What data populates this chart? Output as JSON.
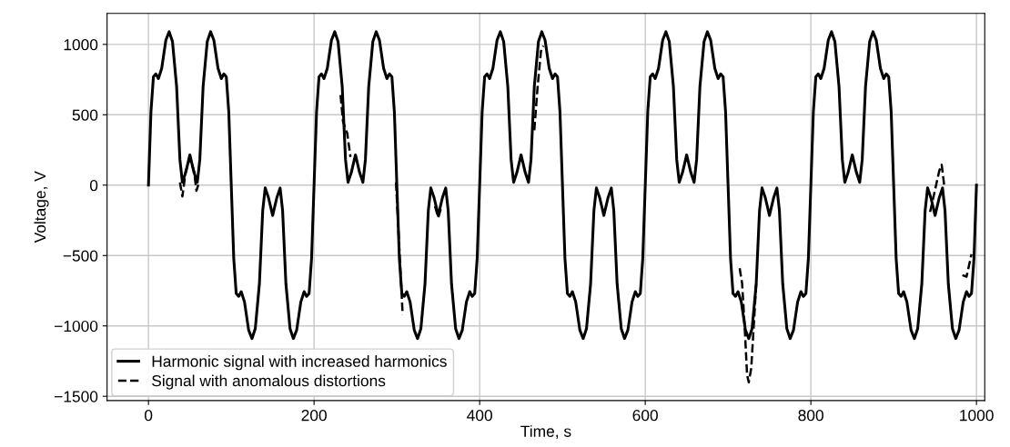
{
  "chart_data": {
    "type": "line",
    "xlabel": "Time, s",
    "ylabel": "Voltage, V",
    "xlim": [
      -50,
      1010
    ],
    "ylim": [
      -1530,
      1220
    ],
    "xticks": [
      0,
      200,
      400,
      600,
      800,
      1000
    ],
    "yticks": [
      {
        "value": -1500,
        "label": "−1500"
      },
      {
        "value": -1000,
        "label": "−1000"
      },
      {
        "value": -500,
        "label": "−500"
      },
      0,
      500,
      1000
    ],
    "grid": true,
    "legend": "bottom left",
    "series": [
      {
        "name": "Harmonic signal with increased harmonics",
        "color": "#000000",
        "line_style": "solid",
        "x": [
          0,
          3,
          6,
          9,
          12,
          16,
          21,
          25,
          29,
          34,
          38,
          41,
          45,
          50,
          55,
          59,
          62,
          66,
          71,
          75,
          79,
          84,
          88,
          91,
          94,
          97,
          100,
          103,
          106,
          109,
          112,
          116,
          121,
          125,
          129,
          134,
          138,
          141,
          145,
          150,
          155,
          159,
          162,
          166,
          171,
          175,
          179,
          184,
          188,
          191,
          194,
          197,
          200,
          203,
          206,
          209,
          212,
          216,
          221,
          225,
          229,
          234,
          238,
          241,
          245,
          250,
          255,
          259,
          262,
          266,
          271,
          275,
          279,
          284,
          288,
          291,
          294,
          297,
          300,
          303,
          306,
          309,
          312,
          316,
          321,
          325,
          329,
          334,
          338,
          341,
          345,
          350,
          355,
          359,
          362,
          366,
          371,
          375,
          379,
          384,
          388,
          391,
          394,
          397,
          400,
          403,
          406,
          409,
          412,
          416,
          421,
          425,
          429,
          434,
          438,
          441,
          445,
          450,
          455,
          459,
          462,
          466,
          471,
          475,
          479,
          484,
          488,
          491,
          494,
          497,
          500,
          503,
          506,
          509,
          512,
          516,
          521,
          525,
          529,
          534,
          538,
          541,
          545,
          550,
          555,
          559,
          562,
          566,
          571,
          575,
          579,
          584,
          588,
          591,
          594,
          597,
          600,
          603,
          606,
          609,
          612,
          616,
          621,
          625,
          629,
          634,
          638,
          641,
          645,
          650,
          655,
          659,
          662,
          666,
          671,
          675,
          679,
          684,
          688,
          691,
          694,
          697,
          700,
          703,
          706,
          709,
          712,
          716,
          721,
          725,
          729,
          734,
          738,
          741,
          745,
          750,
          755,
          759,
          762,
          766,
          771,
          775,
          779,
          784,
          788,
          791,
          794,
          797,
          800,
          803,
          806,
          809,
          812,
          816,
          821,
          825,
          829,
          834,
          838,
          841,
          845,
          850,
          855,
          859,
          862,
          866,
          871,
          875,
          879,
          884,
          888,
          891,
          894,
          897,
          900,
          903,
          906,
          909,
          912,
          916,
          921,
          925,
          929,
          934,
          938,
          941,
          945,
          950,
          955,
          959,
          962,
          966,
          971,
          975,
          979,
          984,
          988,
          991,
          994,
          997,
          1000
        ],
        "values": [
          0,
          520,
          770,
          790,
          757,
          830,
          1030,
          1090,
          1020,
          700,
          180,
          20,
          90,
          215,
          90,
          20,
          180,
          700,
          1020,
          1090,
          1030,
          830,
          757,
          790,
          770,
          520,
          0,
          -520,
          -770,
          -790,
          -757,
          -830,
          -1030,
          -1090,
          -1020,
          -700,
          -180,
          -20,
          -90,
          -215,
          -90,
          -20,
          -180,
          -700,
          -1020,
          -1090,
          -1030,
          -830,
          -757,
          -790,
          -770,
          -520,
          0,
          520,
          770,
          790,
          757,
          830,
          1030,
          1090,
          1020,
          700,
          180,
          20,
          90,
          215,
          90,
          20,
          180,
          700,
          1020,
          1090,
          1030,
          830,
          757,
          790,
          770,
          520,
          0,
          -520,
          -770,
          -790,
          -757,
          -830,
          -1030,
          -1090,
          -1020,
          -700,
          -180,
          -20,
          -90,
          -215,
          -90,
          -20,
          -180,
          -700,
          -1020,
          -1090,
          -1030,
          -830,
          -757,
          -790,
          -770,
          -520,
          0,
          520,
          770,
          790,
          757,
          830,
          1030,
          1090,
          1020,
          700,
          180,
          20,
          90,
          215,
          90,
          20,
          180,
          700,
          1020,
          1090,
          1030,
          830,
          757,
          790,
          770,
          520,
          0,
          -520,
          -770,
          -790,
          -757,
          -830,
          -1030,
          -1090,
          -1020,
          -700,
          -180,
          -20,
          -90,
          -215,
          -90,
          -20,
          -180,
          -700,
          -1020,
          -1090,
          -1030,
          -830,
          -757,
          -790,
          -770,
          -520,
          0,
          520,
          770,
          790,
          757,
          830,
          1030,
          1090,
          1020,
          700,
          180,
          20,
          90,
          215,
          90,
          20,
          180,
          700,
          1020,
          1090,
          1030,
          830,
          757,
          790,
          770,
          520,
          0,
          -520,
          -770,
          -790,
          -757,
          -830,
          -1030,
          -1090,
          -1020,
          -700,
          -180,
          -20,
          -90,
          -215,
          -90,
          -20,
          -180,
          -700,
          -1020,
          -1090,
          -1030,
          -830,
          -757,
          -790,
          -770,
          -520,
          0,
          520,
          770,
          790,
          757,
          830,
          1030,
          1090,
          1020,
          700,
          180,
          20,
          90,
          215,
          90,
          20,
          180,
          700,
          1020,
          1090,
          1030,
          830,
          757,
          790,
          770,
          520,
          0,
          -520,
          -770,
          -790,
          -757,
          -830,
          -1030,
          -1090,
          -1020,
          -700,
          -180,
          -20,
          -90,
          -215,
          -90,
          -20,
          -180,
          -700,
          -1020,
          -1090,
          -1030,
          -830,
          -757,
          -790,
          -770,
          -520,
          0
        ]
      },
      {
        "name": "Signal with anomalous distortions",
        "color": "#000000",
        "line_style": "dashed",
        "x": [
          38,
          41,
          45,
          50,
          55,
          58,
          61,
          62,
          232,
          235,
          240,
          244,
          245,
          299,
          303,
          307,
          308,
          346,
          350,
          353,
          354,
          466,
          470,
          474,
          477,
          478,
          714,
          717,
          720,
          723,
          725,
          728,
          731,
          734,
          735,
          944,
          949,
          955,
          958,
          961,
          962,
          983,
          988,
          994
        ],
        "values": [
          20,
          -80,
          100,
          190,
          100,
          -40,
          20,
          null,
          640,
          450,
          370,
          200,
          null,
          20,
          -450,
          -920,
          null,
          -150,
          -230,
          -170,
          null,
          390,
          700,
          950,
          990,
          null,
          -590,
          -700,
          -1000,
          -1350,
          -1400,
          -1300,
          -1000,
          -700,
          null,
          -190,
          -60,
          100,
          145,
          0,
          null,
          -640,
          -650,
          -490
        ]
      }
    ]
  }
}
